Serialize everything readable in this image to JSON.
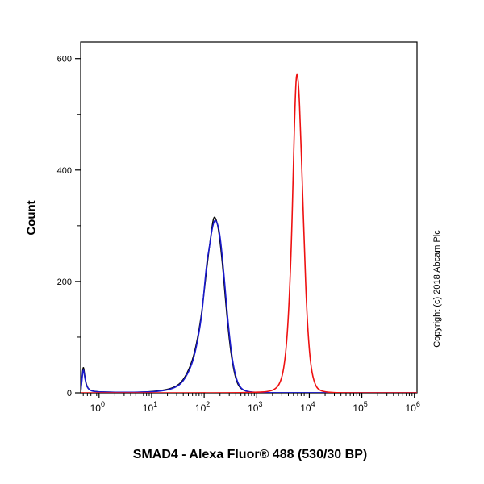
{
  "title": "SMAD4 - Alexa Fluor® 488 (530/30 BP)",
  "ylabel": "Count",
  "copyright": "Copyright (c) 2018 Abcam Plc",
  "chart_data": {
    "type": "line",
    "title": "SMAD4 - Alexa Fluor® 488 (530/30 BP)",
    "xlabel": "",
    "ylabel": "Count",
    "x_axis": {
      "scale": "log10",
      "min_log": -0.35,
      "max_log": 6.05,
      "major_tick_exponents": [
        0,
        1,
        2,
        3,
        4,
        5,
        6
      ],
      "tick_label_base": "10"
    },
    "y_axis": {
      "min": 0,
      "max": 630,
      "major_ticks": [
        0,
        200,
        400,
        600
      ],
      "minor_ticks": [
        100,
        300,
        500
      ]
    },
    "grid": false,
    "legend": "none",
    "series": [
      {
        "name": "control-black",
        "color": "#000000",
        "stroke_width": 1.4,
        "points_logx_count": [
          [
            -0.35,
            0
          ],
          [
            -0.33,
            22
          ],
          [
            -0.3,
            52
          ],
          [
            -0.27,
            28
          ],
          [
            -0.22,
            7
          ],
          [
            -0.1,
            2
          ],
          [
            0.3,
            1
          ],
          [
            0.8,
            1
          ],
          [
            1.2,
            4
          ],
          [
            1.45,
            10
          ],
          [
            1.6,
            22
          ],
          [
            1.75,
            50
          ],
          [
            1.85,
            85
          ],
          [
            1.95,
            140
          ],
          [
            2.02,
            200
          ],
          [
            2.08,
            248
          ],
          [
            2.13,
            285
          ],
          [
            2.18,
            318
          ],
          [
            2.23,
            312
          ],
          [
            2.28,
            290
          ],
          [
            2.35,
            230
          ],
          [
            2.42,
            150
          ],
          [
            2.5,
            75
          ],
          [
            2.58,
            32
          ],
          [
            2.65,
            12
          ],
          [
            2.75,
            4
          ],
          [
            2.9,
            1
          ],
          [
            3.2,
            0
          ],
          [
            6.05,
            0
          ]
        ]
      },
      {
        "name": "sample-blue",
        "color": "#1a1acc",
        "stroke_width": 1.6,
        "points_logx_count": [
          [
            -0.35,
            0
          ],
          [
            -0.33,
            18
          ],
          [
            -0.3,
            47
          ],
          [
            -0.27,
            25
          ],
          [
            -0.22,
            6
          ],
          [
            -0.05,
            1
          ],
          [
            0.8,
            1
          ],
          [
            1.2,
            3
          ],
          [
            1.45,
            9
          ],
          [
            1.6,
            20
          ],
          [
            1.75,
            46
          ],
          [
            1.85,
            80
          ],
          [
            1.95,
            135
          ],
          [
            2.0,
            185
          ],
          [
            2.05,
            235
          ],
          [
            2.1,
            262
          ],
          [
            2.15,
            295
          ],
          [
            2.2,
            312
          ],
          [
            2.25,
            305
          ],
          [
            2.3,
            285
          ],
          [
            2.37,
            220
          ],
          [
            2.44,
            140
          ],
          [
            2.52,
            68
          ],
          [
            2.6,
            28
          ],
          [
            2.68,
            10
          ],
          [
            2.78,
            3
          ],
          [
            2.95,
            1
          ],
          [
            3.3,
            0
          ],
          [
            6.05,
            0
          ]
        ]
      },
      {
        "name": "sample-red",
        "color": "#ee1111",
        "stroke_width": 1.6,
        "points_logx_count": [
          [
            -0.35,
            0
          ],
          [
            1.0,
            0
          ],
          [
            2.5,
            0
          ],
          [
            3.0,
            1
          ],
          [
            3.2,
            2
          ],
          [
            3.35,
            6
          ],
          [
            3.45,
            18
          ],
          [
            3.52,
            45
          ],
          [
            3.58,
            100
          ],
          [
            3.63,
            190
          ],
          [
            3.67,
            300
          ],
          [
            3.7,
            420
          ],
          [
            3.73,
            520
          ],
          [
            3.75,
            565
          ],
          [
            3.77,
            575
          ],
          [
            3.8,
            550
          ],
          [
            3.83,
            480
          ],
          [
            3.87,
            370
          ],
          [
            3.91,
            250
          ],
          [
            3.95,
            150
          ],
          [
            4.0,
            75
          ],
          [
            4.05,
            35
          ],
          [
            4.12,
            12
          ],
          [
            4.2,
            4
          ],
          [
            4.35,
            1
          ],
          [
            4.6,
            0
          ],
          [
            6.05,
            0
          ]
        ]
      }
    ]
  }
}
